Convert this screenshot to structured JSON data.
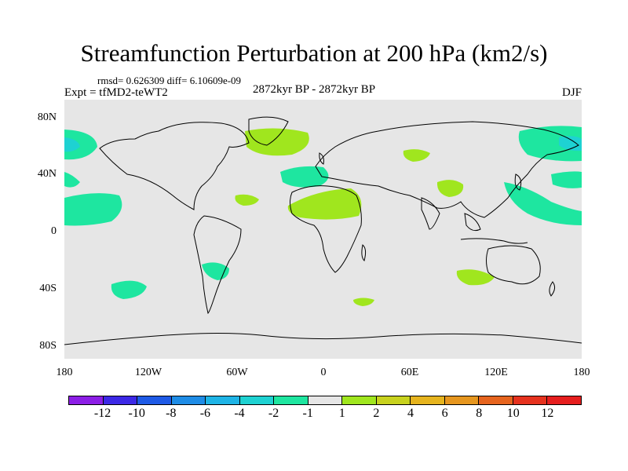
{
  "title": "Streamfunction Perturbation at 200 hPa (km2/s)",
  "stats": "rmsd= 0.626309 diff= 6.10609e-09",
  "experiment": "Expt = tfMD2-teWT2",
  "period": "2872kyr BP - 2872kyr BP",
  "season": "DJF",
  "lat_labels": [
    "80N",
    "40N",
    "0",
    "40S",
    "80S"
  ],
  "lon_labels": [
    "180",
    "120W",
    "60W",
    "0",
    "60E",
    "120E",
    "180"
  ],
  "colorbar": {
    "labels": [
      "-12",
      "-10",
      "-8",
      "-6",
      "-4",
      "-2",
      "-1",
      "1",
      "2",
      "4",
      "6",
      "8",
      "10",
      "12"
    ],
    "colors": [
      "#8c1ee6",
      "#3c28e6",
      "#1e5ae6",
      "#1e8ce6",
      "#1eb4e6",
      "#1ed2d2",
      "#1ee6a0",
      "#e6e6e6",
      "#a0e61e",
      "#c8d21e",
      "#e6b41e",
      "#e6961e",
      "#e6641e",
      "#e6321e",
      "#e61e1e"
    ]
  },
  "colors": {
    "background": "#e6e6e6",
    "negative_fill": "#1ee6a0",
    "negative_core": "#1ed2d2",
    "positive_fill": "#a0e61e"
  }
}
